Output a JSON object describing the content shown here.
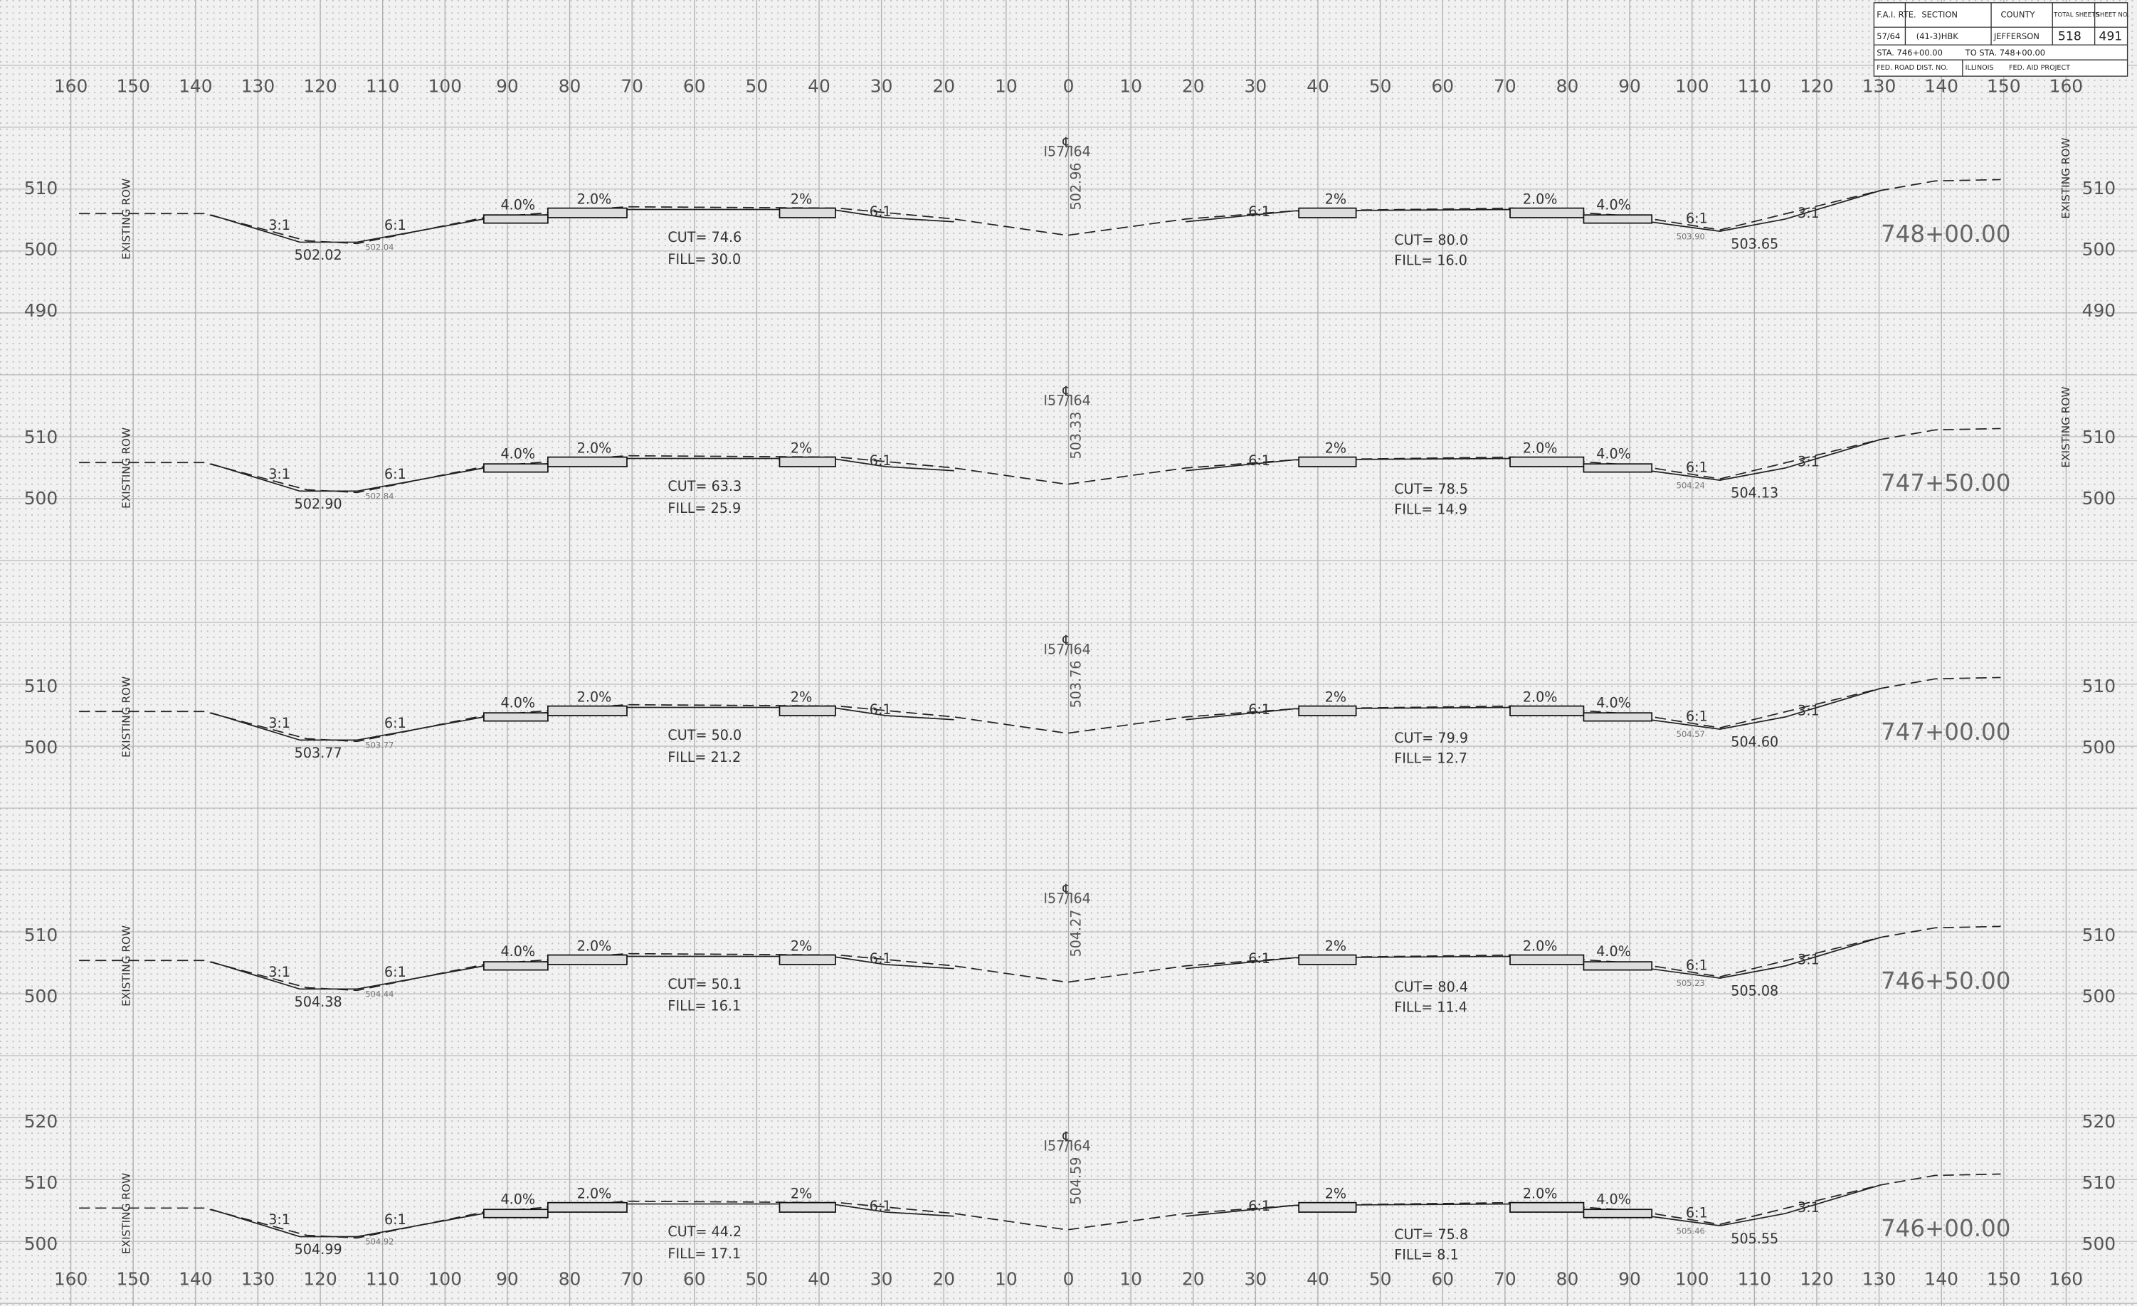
{
  "title_block": {
    "fai_rte_label": "F.A.I. RTE.",
    "section_label": "SECTION",
    "county_label": "COUNTY",
    "total_sheets_label": "TOTAL SHEETS",
    "sheet_no_label": "SHEET NO.",
    "route": "57/64",
    "section": "(41-3)HBK",
    "county": "JEFFERSON",
    "total_sheets": "518",
    "sheet_no": "491",
    "station_from": "STA. 746+00.00",
    "station_to": "TO STA. 748+00.00",
    "fed_road": "FED. ROAD DIST. NO.",
    "state": "ILLINOIS",
    "fed_aid": "FED. AID PROJECT"
  },
  "offsets": [
    160,
    150,
    140,
    130,
    120,
    110,
    100,
    90,
    80,
    70,
    60,
    50,
    40,
    30,
    20,
    10,
    0,
    10,
    20,
    30,
    40,
    50,
    60,
    70,
    80,
    90,
    100,
    110,
    120,
    130,
    140,
    150,
    160
  ],
  "centerline_symbol": "℄",
  "sections": [
    {
      "station": "748+00.00",
      "route": "I57/I64",
      "cl_elev": "502.96",
      "elev_labels": [
        510,
        500,
        490
      ],
      "existing_row": "EXISTING ROW",
      "existing_row_right": "EXISTING ROW",
      "left_toe": "502.02",
      "left_toe_existing": "502.04",
      "right_toe": "503.65",
      "right_toe_existing": "503.90",
      "cut_left": "CUT= 74.6",
      "fill_left": "FILL= 30.0",
      "cut_right": "CUT= 80.0",
      "fill_right": "FILL= 16.0",
      "slopes_left": [
        "3:1",
        "6:1",
        "4.0%",
        "2.0%",
        "2%",
        "6:1"
      ],
      "slopes_right": [
        "6:1",
        "2%",
        "2.0%",
        "4.0%",
        "6:1",
        "3:1"
      ]
    },
    {
      "station": "747+50.00",
      "route": "I57/I64",
      "cl_elev": "503.33",
      "elev_labels": [
        510,
        500
      ],
      "existing_row": "EXISTING ROW",
      "existing_row_right": "EXISTING ROW",
      "left_toe": "502.90",
      "left_toe_existing": "502.84",
      "right_toe": "504.13",
      "right_toe_existing": "504.24",
      "cut_left": "CUT= 63.3",
      "fill_left": "FILL= 25.9",
      "cut_right": "CUT= 78.5",
      "fill_right": "FILL= 14.9",
      "slopes_left": [
        "3:1",
        "6:1",
        "4.0%",
        "2.0%",
        "2%",
        "6:1"
      ],
      "slopes_right": [
        "6:1",
        "2%",
        "2.0%",
        "4.0%",
        "6:1",
        "3:1"
      ]
    },
    {
      "station": "747+00.00",
      "route": "I57/I64",
      "cl_elev": "503.76",
      "elev_labels": [
        510,
        500
      ],
      "existing_row": "EXISTING ROW",
      "left_toe": "503.77",
      "left_toe_existing": "503.77",
      "right_toe": "504.60",
      "right_toe_existing": "504.57",
      "cut_left": "CUT= 50.0",
      "fill_left": "FILL= 21.2",
      "cut_right": "CUT= 79.9",
      "fill_right": "FILL= 12.7",
      "slopes_left": [
        "3:1",
        "6:1",
        "4.0%",
        "2.0%",
        "2%",
        "6:1"
      ],
      "slopes_right": [
        "6:1",
        "2%",
        "2.0%",
        "4.0%",
        "6:1",
        "3:1"
      ]
    },
    {
      "station": "746+50.00",
      "route": "I57/I64",
      "cl_elev": "504.27",
      "elev_labels": [
        510,
        500
      ],
      "existing_row": "EXISTING ROW",
      "left_toe": "504.38",
      "left_toe_existing": "504.44",
      "right_toe": "505.08",
      "right_toe_existing": "505.23",
      "cut_left": "CUT= 50.1",
      "fill_left": "FILL= 16.1",
      "cut_right": "CUT= 80.4",
      "fill_right": "FILL= 11.4",
      "slopes_left": [
        "3:1",
        "6:1",
        "4.0%",
        "2.0%",
        "2%",
        "6:1"
      ],
      "slopes_right": [
        "6:1",
        "2%",
        "2.0%",
        "4.0%",
        "6:1",
        "3:1"
      ]
    },
    {
      "station": "746+00.00",
      "route": "I57/I64",
      "cl_elev": "504.59",
      "elev_labels": [
        520,
        510,
        500
      ],
      "existing_row": "EXISTING ROW",
      "left_toe": "504.99",
      "left_toe_existing": "504.92",
      "right_toe": "505.55",
      "right_toe_existing": "505.46",
      "cut_left": "CUT= 44.2",
      "fill_left": "FILL= 17.1",
      "cut_right": "CUT= 75.8",
      "fill_right": "FILL= 8.1",
      "slopes_left": [
        "3:1",
        "6:1",
        "4.0%",
        "2.0%",
        "2%",
        "6:1"
      ],
      "slopes_right": [
        "6:1",
        "2%",
        "2.0%",
        "4.0%",
        "6:1",
        "3:1"
      ]
    }
  ]
}
